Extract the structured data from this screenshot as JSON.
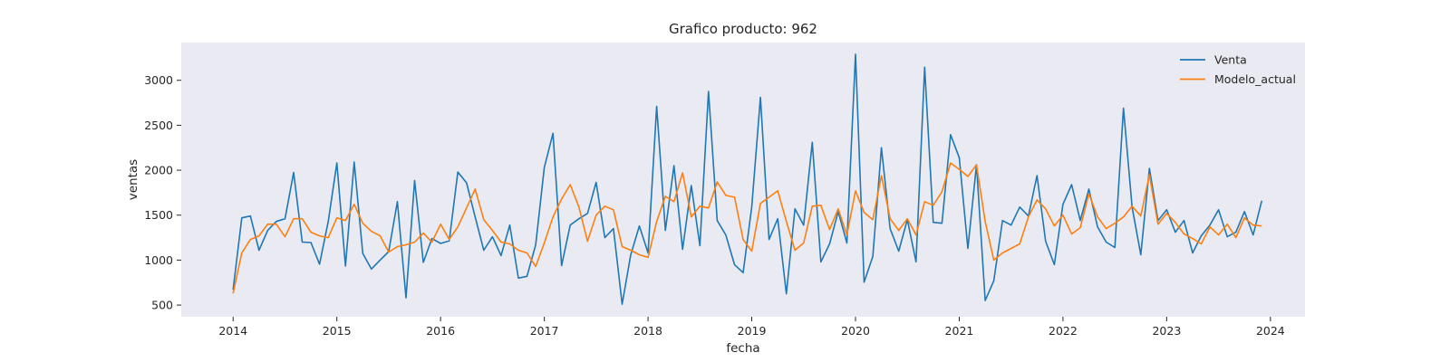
{
  "chart_data": {
    "type": "line",
    "title": "Grafico producto: 962",
    "xlabel": "fecha",
    "ylabel": "ventas",
    "x_ticks": [
      "2014",
      "2015",
      "2016",
      "2017",
      "2018",
      "2019",
      "2020",
      "2021",
      "2022",
      "2023",
      "2024"
    ],
    "y_ticks": [
      500,
      1000,
      1500,
      2000,
      2500,
      3000
    ],
    "xlim": [
      "2013-07",
      "2024-05"
    ],
    "ylim": [
      370,
      3420
    ],
    "grid": false,
    "legend": "top-right",
    "x_start": "2014-01",
    "x_freq": "monthly",
    "series": [
      {
        "name": "Venta",
        "color": "#1f77b4",
        "values": [
          670,
          1470,
          1490,
          1110,
          1330,
          1430,
          1460,
          1975,
          1200,
          1195,
          955,
          1430,
          2080,
          935,
          2090,
          1075,
          900,
          1000,
          1095,
          1650,
          580,
          1885,
          975,
          1240,
          1185,
          1215,
          1980,
          1860,
          1480,
          1110,
          1260,
          1050,
          1390,
          800,
          820,
          1170,
          2030,
          2410,
          940,
          1390,
          1460,
          1520,
          1865,
          1250,
          1350,
          510,
          1060,
          1380,
          1080,
          2710,
          1330,
          2050,
          1120,
          1830,
          1160,
          2875,
          1440,
          1280,
          950,
          860,
          1590,
          2810,
          1230,
          1460,
          625,
          1570,
          1390,
          2310,
          980,
          1180,
          1540,
          1190,
          3290,
          755,
          1040,
          2250,
          1350,
          1100,
          1450,
          980,
          3145,
          1420,
          1410,
          2395,
          2140,
          1130,
          2060,
          550,
          770,
          1440,
          1390,
          1590,
          1490,
          1940,
          1210,
          950,
          1620,
          1840,
          1440,
          1790,
          1370,
          1200,
          1140,
          2690,
          1590,
          1060,
          2020,
          1440,
          1560,
          1310,
          1440,
          1080,
          1270,
          1390,
          1560,
          1260,
          1310,
          1540,
          1280,
          1660
        ]
      },
      {
        "name": "Modelo_actual",
        "color": "#ff7f0e",
        "values": [
          630,
          1080,
          1230,
          1270,
          1400,
          1400,
          1260,
          1460,
          1460,
          1310,
          1270,
          1250,
          1470,
          1440,
          1620,
          1410,
          1320,
          1270,
          1090,
          1150,
          1170,
          1200,
          1300,
          1200,
          1400,
          1230,
          1370,
          1580,
          1790,
          1450,
          1330,
          1200,
          1180,
          1110,
          1080,
          930,
          1190,
          1480,
          1680,
          1840,
          1590,
          1210,
          1500,
          1600,
          1560,
          1150,
          1110,
          1060,
          1030,
          1430,
          1710,
          1650,
          1970,
          1480,
          1600,
          1580,
          1870,
          1720,
          1700,
          1230,
          1100,
          1630,
          1700,
          1770,
          1430,
          1110,
          1190,
          1600,
          1610,
          1340,
          1570,
          1280,
          1770,
          1530,
          1450,
          1940,
          1460,
          1330,
          1460,
          1280,
          1650,
          1610,
          1760,
          2080,
          2010,
          1930,
          2060,
          1430,
          1000,
          1080,
          1130,
          1180,
          1480,
          1670,
          1570,
          1380,
          1500,
          1290,
          1360,
          1740,
          1480,
          1350,
          1410,
          1480,
          1600,
          1490,
          1950,
          1400,
          1520,
          1420,
          1290,
          1240,
          1180,
          1370,
          1280,
          1400,
          1250,
          1470,
          1390,
          1380
        ]
      }
    ]
  }
}
